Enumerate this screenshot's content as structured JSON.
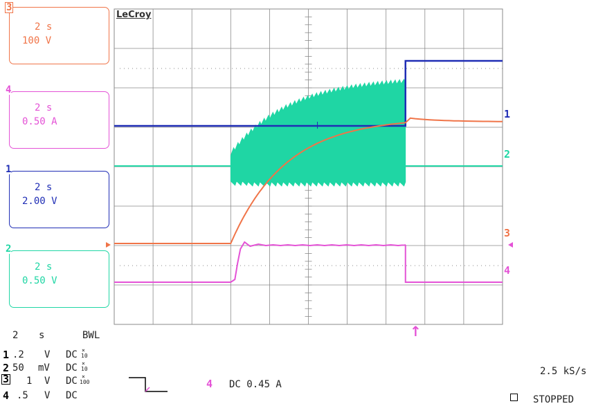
{
  "brand": "LeCroy",
  "colors": {
    "ch1": "#1f2db5",
    "ch2": "#1fd6a4",
    "ch3": "#f07448",
    "ch4": "#e452d6",
    "grid": "#8a8a8a"
  },
  "trace_boxes": [
    {
      "id": "3",
      "timebase": "2 s",
      "scale": "100 V",
      "color": "#f07448"
    },
    {
      "id": "4",
      "timebase": "2 s",
      "scale": "0.50 A",
      "color": "#e452d6"
    },
    {
      "id": "1",
      "timebase": "2 s",
      "scale": "2.00 V",
      "color": "#1f2db5"
    },
    {
      "id": "2",
      "timebase": "2 s",
      "scale": "0.50 V",
      "color": "#1fd6a4"
    }
  ],
  "right_labels": [
    "1",
    "2",
    "3",
    "4"
  ],
  "status": {
    "timebase": "2",
    "timebase_unit": "s",
    "bwl": "BWL",
    "channels": [
      {
        "num": "1",
        "value": ".2",
        "unit": "V",
        "coupling": "DC",
        "probe": "10"
      },
      {
        "num": "2",
        "value": "50",
        "unit": "mV",
        "coupling": "DC",
        "probe": "10"
      },
      {
        "num": "3",
        "value": "1",
        "unit": "V",
        "coupling": "DC",
        "probe": "100"
      },
      {
        "num": "4",
        "value": ".5",
        "unit": "V",
        "coupling": "DC",
        "probe": ""
      }
    ],
    "trigger_channel": "4",
    "trigger_coupling": "DC 0.45 A",
    "sample_rate": "2.5 kS/s",
    "acq_state": "STOPPED",
    "trigger_marker": "↑"
  }
}
